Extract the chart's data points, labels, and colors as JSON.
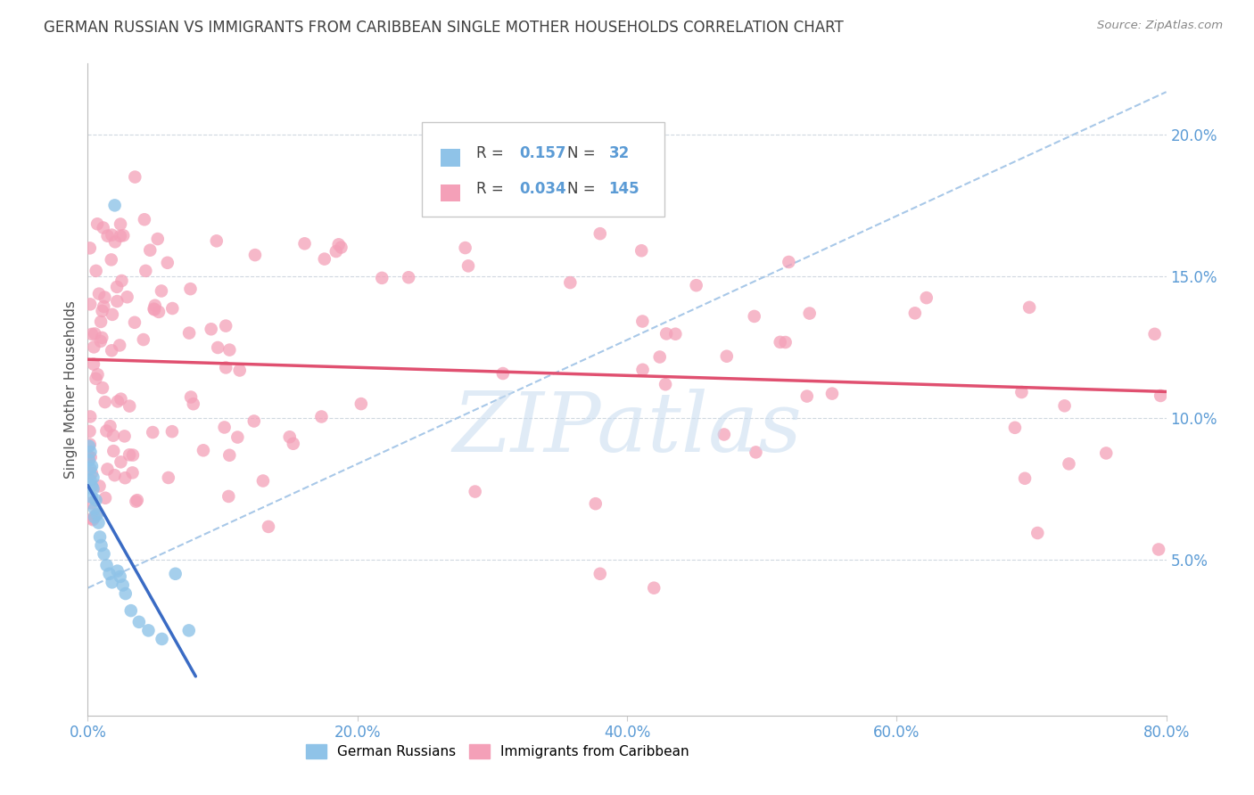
{
  "title": "GERMAN RUSSIAN VS IMMIGRANTS FROM CARIBBEAN SINGLE MOTHER HOUSEHOLDS CORRELATION CHART",
  "source": "Source: ZipAtlas.com",
  "ylabel": "Single Mother Households",
  "xlim": [
    0.0,
    0.8
  ],
  "ylim": [
    -0.005,
    0.225
  ],
  "german_russian_color": "#8FC3E8",
  "caribbean_color": "#F4A0B8",
  "blue_line_color": "#3A6BC4",
  "pink_line_color": "#E05070",
  "dashed_line_color": "#A8C8E8",
  "watermark_color": "#C8DCF0",
  "title_color": "#404040",
  "axis_color": "#5B9BD5",
  "grid_color": "#D0D8E0",
  "source_color": "#888888",
  "legend_box_color": "#CCCCCC",
  "xticks": [
    0.0,
    0.2,
    0.4,
    0.6,
    0.8
  ],
  "yticks": [
    0.05,
    0.1,
    0.15,
    0.2
  ],
  "xtick_labels": [
    "0.0%",
    "20.0%",
    "40.0%",
    "60.0%",
    "80.0%"
  ],
  "ytick_labels": [
    "5.0%",
    "10.0%",
    "15.0%",
    "20.0%"
  ],
  "legend_r1": "0.157",
  "legend_n1": "32",
  "legend_r2": "0.034",
  "legend_n2": "145"
}
